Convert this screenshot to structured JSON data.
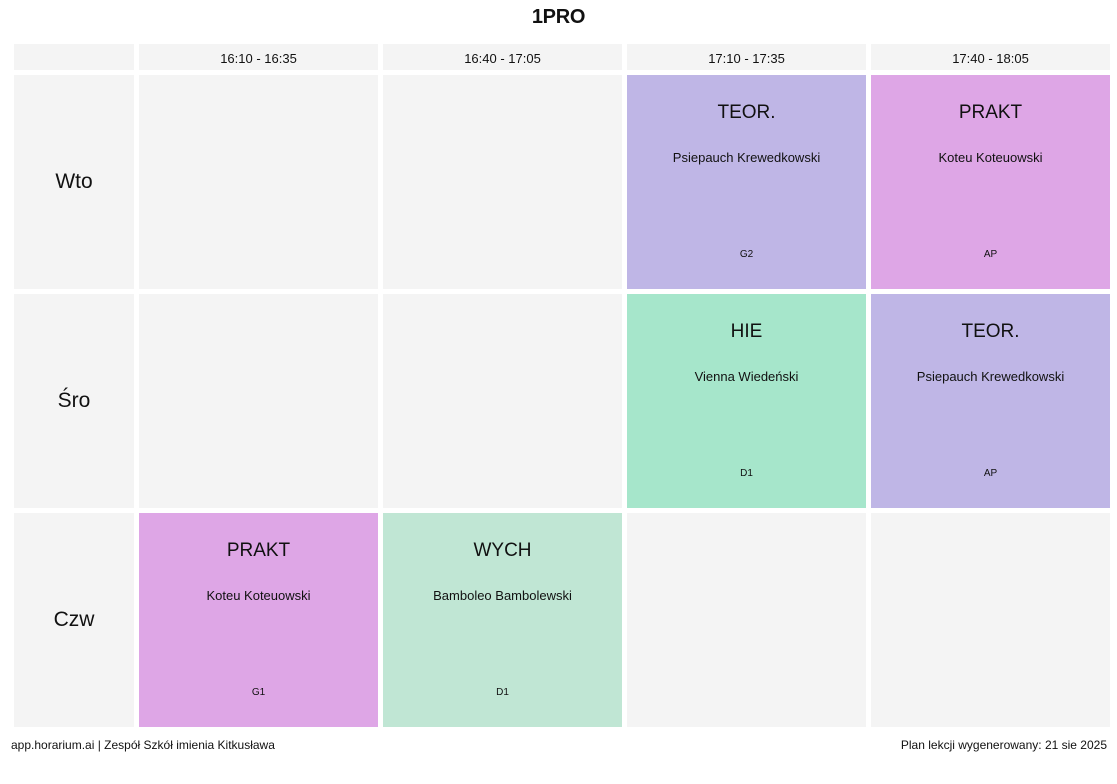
{
  "title": "1PRO",
  "times": [
    "16:10 - 16:35",
    "16:40 - 17:05",
    "17:10 - 17:35",
    "17:40 - 18:05"
  ],
  "days": [
    {
      "label": "Wto",
      "slots": [
        null,
        null,
        {
          "subject": "TEOR.",
          "teacher": "Psiepauch Krewedkowski",
          "room": "G2",
          "color": "#bfb6e6"
        },
        {
          "subject": "PRAKT",
          "teacher": "Koteu Koteuowski",
          "room": "AP",
          "color": "#dea6e6"
        }
      ]
    },
    {
      "label": "Śro",
      "slots": [
        null,
        null,
        {
          "subject": "HIE",
          "teacher": "Vienna Wiedeński",
          "room": "D1",
          "color": "#a6e6cb"
        },
        {
          "subject": "TEOR.",
          "teacher": "Psiepauch Krewedkowski",
          "room": "AP",
          "color": "#bfb6e6"
        }
      ]
    },
    {
      "label": "Czw",
      "slots": [
        {
          "subject": "PRAKT",
          "teacher": "Koteu Koteuowski",
          "room": "G1",
          "color": "#dea6e6"
        },
        {
          "subject": "WYCH",
          "teacher": "Bamboleo Bambolewski",
          "room": "D1",
          "color": "#c0e6d4"
        },
        null,
        null
      ]
    }
  ],
  "footer": {
    "left": "app.horarium.ai | Zespół Szkół imienia Kitkusława",
    "right": "Plan lekcji wygenerowany: 21 sie 2025"
  },
  "colors": {
    "empty_cell": "#f4f4f4",
    "teor": "#bfb6e6",
    "prakt": "#dea6e6",
    "hie": "#a6e6cb",
    "wych": "#c0e6d4"
  }
}
